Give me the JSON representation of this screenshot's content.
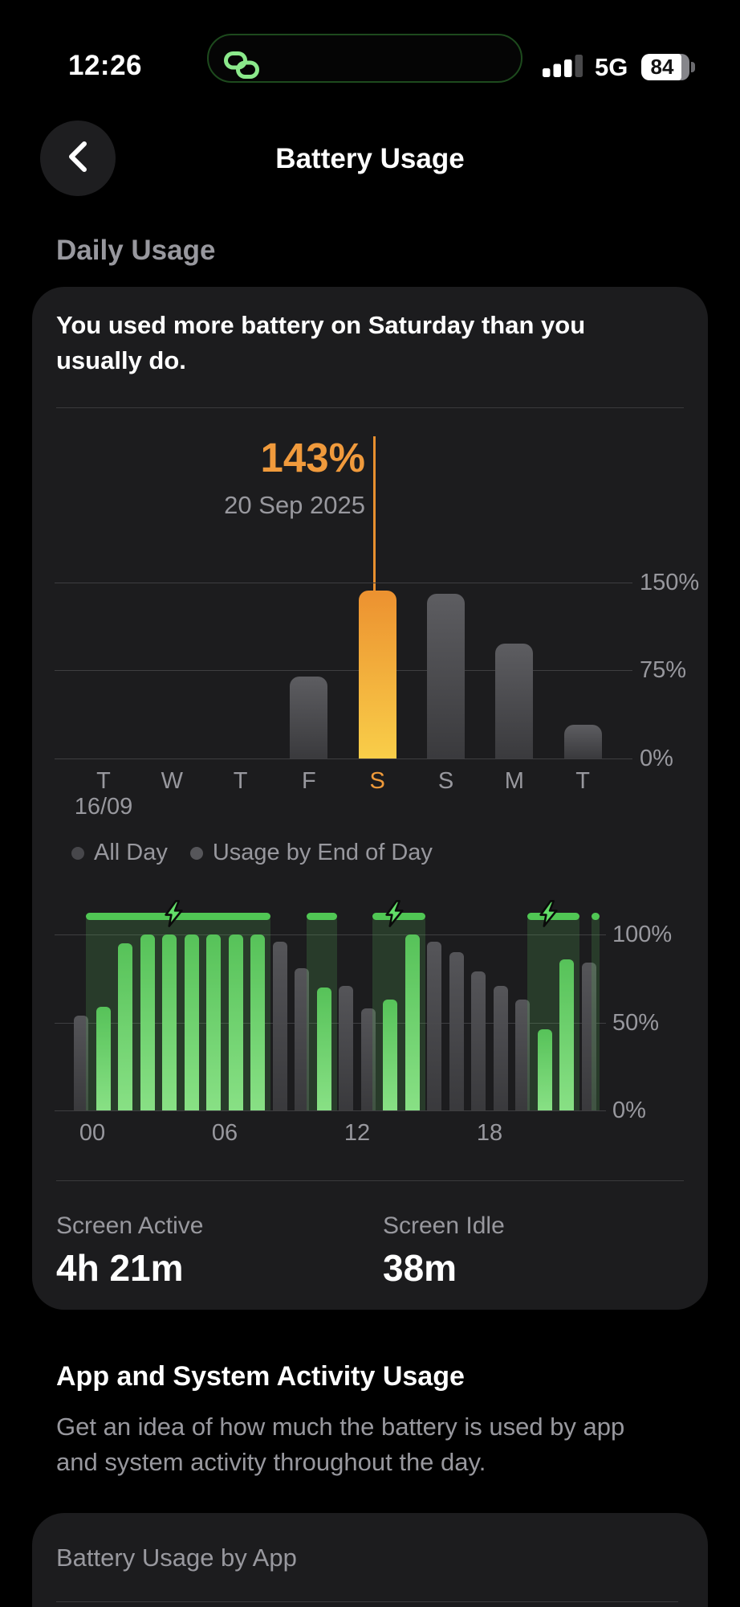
{
  "colors": {
    "accent_orange": "#F09A3C",
    "charge_green": "#5AC65C",
    "card_background": "#1C1C1E",
    "gray_text": "#98989E"
  },
  "status_bar": {
    "time": "12:26",
    "hotspot_icon": "personal-hotspot-icon",
    "signal_icon": "cellular-signal-icon",
    "network": "5G",
    "battery_icon": "battery-icon",
    "battery_level": "84"
  },
  "nav": {
    "back_icon": "chevron-left-icon",
    "title": "Battery Usage"
  },
  "daily_usage_header": "Daily Usage",
  "card": {
    "insight": "You used more battery on Saturday than you usually do.",
    "callout": {
      "value": "143%",
      "date": "20 Sep 2025"
    },
    "daily_chart": {
      "type": "bar",
      "categories": [
        "T",
        "W",
        "T",
        "F",
        "S",
        "S",
        "M",
        "T"
      ],
      "values": [
        0,
        0,
        0,
        70,
        143,
        140,
        98,
        29
      ],
      "selected_index": 4,
      "selected_value_label": "143%",
      "selected_date": "20 Sep 2025",
      "start_label": "16/09",
      "yticks": [
        {
          "label": "150%",
          "value": 150
        },
        {
          "label": "75%",
          "value": 75
        },
        {
          "label": "0%",
          "value": 0
        }
      ],
      "ylim": [
        0,
        150
      ],
      "bar_color_default": "gray",
      "bar_color_selected": "orange"
    },
    "legend": [
      {
        "label": "All Day",
        "dot_color": "#47474B"
      },
      {
        "label": "Usage by End of Day",
        "dot_color": "#56565A"
      }
    ],
    "battery_level_chart": {
      "type": "bar",
      "levels": [
        54,
        59,
        95,
        100,
        100,
        100,
        100,
        100,
        100,
        96,
        81,
        70,
        71,
        58,
        63,
        100,
        96,
        90,
        79,
        71,
        63,
        46,
        86,
        84
      ],
      "colors": [
        "gray",
        "green",
        "green",
        "green",
        "green",
        "green",
        "green",
        "green",
        "green",
        "gray",
        "gray",
        "green",
        "gray",
        "gray",
        "green",
        "green",
        "gray",
        "gray",
        "gray",
        "gray",
        "gray",
        "green",
        "green",
        "gray"
      ],
      "charging_periods": [
        {
          "start_hour": 1,
          "end_hour": 8,
          "bolt": true,
          "icon": "charging-bolt-icon"
        },
        {
          "start_hour": 11,
          "end_hour": 11,
          "bolt": false
        },
        {
          "start_hour": 14,
          "end_hour": 15,
          "bolt": true,
          "icon": "charging-bolt-icon"
        },
        {
          "start_hour": 21,
          "end_hour": 22,
          "bolt": true,
          "icon": "charging-bolt-icon"
        },
        {
          "start_hour": 23.5,
          "end_hour": 23.5,
          "bolt": false,
          "narrow": true
        }
      ],
      "x_labels": [
        {
          "label": "00",
          "hour": 0
        },
        {
          "label": "06",
          "hour": 6
        },
        {
          "label": "12",
          "hour": 12
        },
        {
          "label": "18",
          "hour": 18
        }
      ],
      "yticks": [
        {
          "label": "100%",
          "value": 100
        },
        {
          "label": "50%",
          "value": 50
        },
        {
          "label": "0%",
          "value": 0
        }
      ],
      "ylim": [
        0,
        100
      ]
    },
    "stats": [
      {
        "label": "Screen Active",
        "value": "4h 21m"
      },
      {
        "label": "Screen Idle",
        "value": "38m"
      }
    ]
  },
  "activity_section": {
    "heading": "App and System Activity Usage",
    "description": "Get an idea of how much the battery is used by app and system activity throughout the day."
  },
  "by_app_card": {
    "title": "Battery Usage by App"
  }
}
